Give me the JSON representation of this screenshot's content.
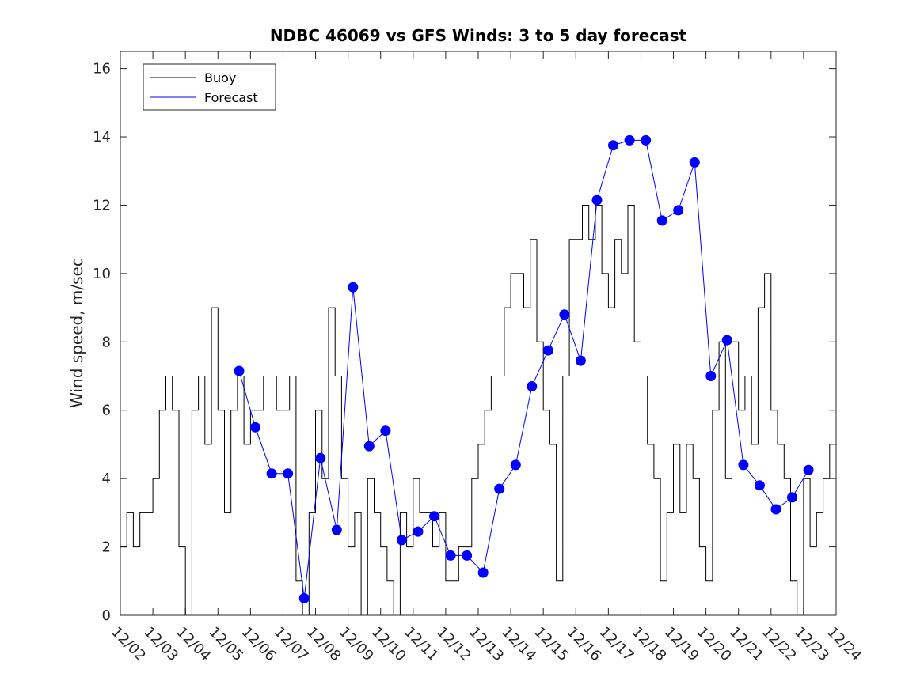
{
  "chart_data": {
    "type": "line",
    "title": "NDBC 46069 vs GFS Winds: 3 to 5 day forecast",
    "xlabel": "",
    "ylabel": "Wind speed, m/sec",
    "xlim": [
      "12/02",
      "12/24"
    ],
    "ylim": [
      0,
      16.5
    ],
    "categories": [
      "12/02",
      "12/03",
      "12/04",
      "12/05",
      "12/06",
      "12/07",
      "12/08",
      "12/09",
      "12/10",
      "12/11",
      "12/12",
      "12/13",
      "12/14",
      "12/15",
      "12/16",
      "12/17",
      "12/18",
      "12/19",
      "12/20",
      "12/21",
      "12/22",
      "12/23",
      "12/24"
    ],
    "yticks": [
      0,
      2,
      4,
      6,
      8,
      10,
      12,
      14,
      16
    ],
    "legend_position": "top-left",
    "grid": false,
    "colors": {
      "buoy": "#000000",
      "forecast": "#0000ff",
      "axis": "#262626"
    },
    "series": [
      {
        "name": "Buoy",
        "x": [
          0.0,
          0.2,
          0.4,
          0.6,
          0.8,
          1.0,
          1.2,
          1.4,
          1.6,
          1.8,
          2.0,
          2.2,
          2.4,
          2.6,
          2.8,
          3.0,
          3.2,
          3.4,
          3.6,
          3.8,
          4.0,
          4.2,
          4.4,
          4.6,
          4.8,
          5.0,
          5.2,
          5.4,
          5.6,
          5.8,
          6.0,
          6.2,
          6.4,
          6.6,
          6.8,
          7.0,
          7.2,
          7.4,
          7.6,
          7.8,
          8.0,
          8.2,
          8.4,
          8.6,
          8.8,
          9.0,
          9.2,
          9.4,
          9.6,
          9.8,
          10.0,
          10.2,
          10.4,
          10.6,
          10.8,
          11.0,
          11.2,
          11.4,
          11.6,
          11.8,
          12.0,
          12.2,
          12.4,
          12.6,
          12.8,
          13.0,
          13.2,
          13.4,
          13.6,
          13.8,
          14.0,
          14.2,
          14.4,
          14.6,
          14.8,
          15.0,
          15.2,
          15.4,
          15.6,
          15.8,
          16.0,
          16.2,
          16.4,
          16.6,
          16.8,
          17.0,
          17.2,
          17.4,
          17.6,
          17.8,
          18.0,
          18.2,
          18.4,
          18.6,
          18.8,
          19.0,
          19.2,
          19.4,
          19.6,
          19.8,
          20.0,
          20.2,
          20.4,
          20.6,
          20.8,
          21.0,
          21.2,
          21.4,
          21.6,
          21.8
        ],
        "values": [
          2,
          3,
          2,
          3,
          3,
          4,
          6,
          7,
          6,
          2,
          0,
          6,
          7,
          5,
          9,
          6,
          3,
          6,
          7,
          5,
          6,
          6,
          7,
          7,
          6,
          6,
          7,
          1,
          0,
          3,
          6,
          4,
          9,
          7,
          4,
          2,
          3,
          0,
          4,
          3,
          2,
          1,
          0,
          3,
          2,
          4,
          3,
          3,
          2,
          3,
          1,
          1,
          2,
          2,
          4,
          5,
          6,
          7,
          7,
          9,
          10,
          10,
          9,
          11,
          8,
          6,
          5,
          1,
          7,
          11,
          11,
          12,
          11,
          12,
          10,
          9,
          11,
          10,
          12,
          8,
          7,
          5,
          4,
          1,
          3,
          5,
          3,
          5,
          4,
          2,
          1,
          6,
          8,
          4,
          8,
          6,
          7,
          5,
          9,
          10,
          6,
          5,
          4,
          1,
          0,
          4,
          2,
          3,
          4,
          5
        ]
      },
      {
        "name": "Forecast",
        "x": [
          3.65,
          4.15,
          4.65,
          5.15,
          5.65,
          6.15,
          6.65,
          7.15,
          7.65,
          8.15,
          8.65,
          9.15,
          9.65,
          10.15,
          10.65,
          11.15,
          11.65,
          12.15,
          12.65,
          13.15,
          13.65,
          14.15,
          14.65,
          15.15,
          15.65,
          16.15,
          16.65,
          17.15,
          17.65,
          18.15,
          18.65,
          19.15,
          19.65,
          20.15,
          20.65,
          21.15
        ],
        "values": [
          7.15,
          5.5,
          4.15,
          4.15,
          0.5,
          4.6,
          2.5,
          9.6,
          4.95,
          5.4,
          2.2,
          2.45,
          2.9,
          1.75,
          1.75,
          1.25,
          3.7,
          4.4,
          6.7,
          7.75,
          8.8,
          7.45,
          12.15,
          13.75,
          13.9,
          13.9,
          11.55,
          11.85,
          13.25,
          7.0,
          8.05,
          4.4,
          3.8,
          3.1,
          3.45,
          4.25
        ]
      }
    ]
  }
}
